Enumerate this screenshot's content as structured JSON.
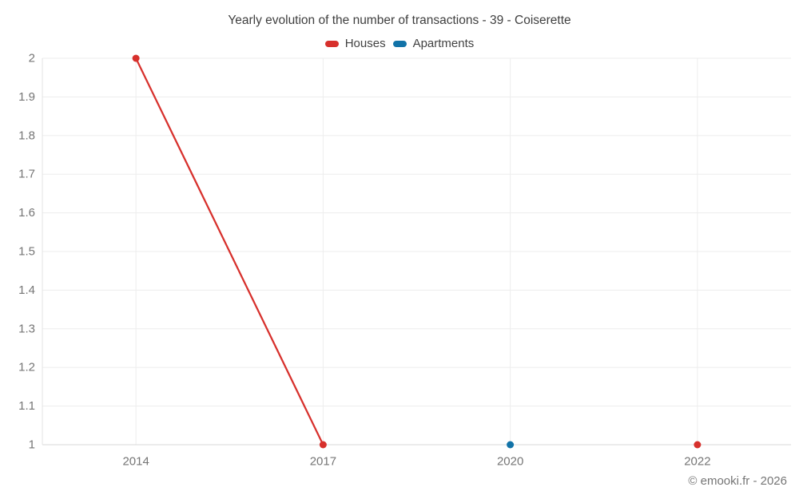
{
  "title": "Yearly evolution of the number of transactions - 39 - Coiserette",
  "footer": "© emooki.fr - 2026",
  "colors": {
    "houses": "#d7302c",
    "apartments": "#1273a8",
    "grid": "#ededed",
    "baseline": "#d9d9d9",
    "axis": "#e3e3e3",
    "tick_label": "#757575",
    "title_text": "#3f3f3f"
  },
  "chart_data": {
    "type": "line",
    "title": "Yearly evolution of the number of transactions - 39 - Coiserette",
    "xlabel": "",
    "ylabel": "",
    "categories": [
      "2014",
      "2017",
      "2020",
      "2022"
    ],
    "series": [
      {
        "name": "Houses",
        "color": "#d7302c",
        "values": [
          2,
          1,
          null,
          1
        ]
      },
      {
        "name": "Apartments",
        "color": "#1273a8",
        "values": [
          null,
          null,
          1,
          null
        ]
      }
    ],
    "ylim": [
      1,
      2
    ],
    "y_tick_step": 0.1,
    "y_tick_labels": [
      "2",
      "1.9",
      "1.8",
      "1.7",
      "1.6",
      "1.5",
      "1.4",
      "1.3",
      "1.2",
      "1.1",
      "1"
    ],
    "grid": true,
    "legend_position": "top",
    "marker": "circle"
  }
}
